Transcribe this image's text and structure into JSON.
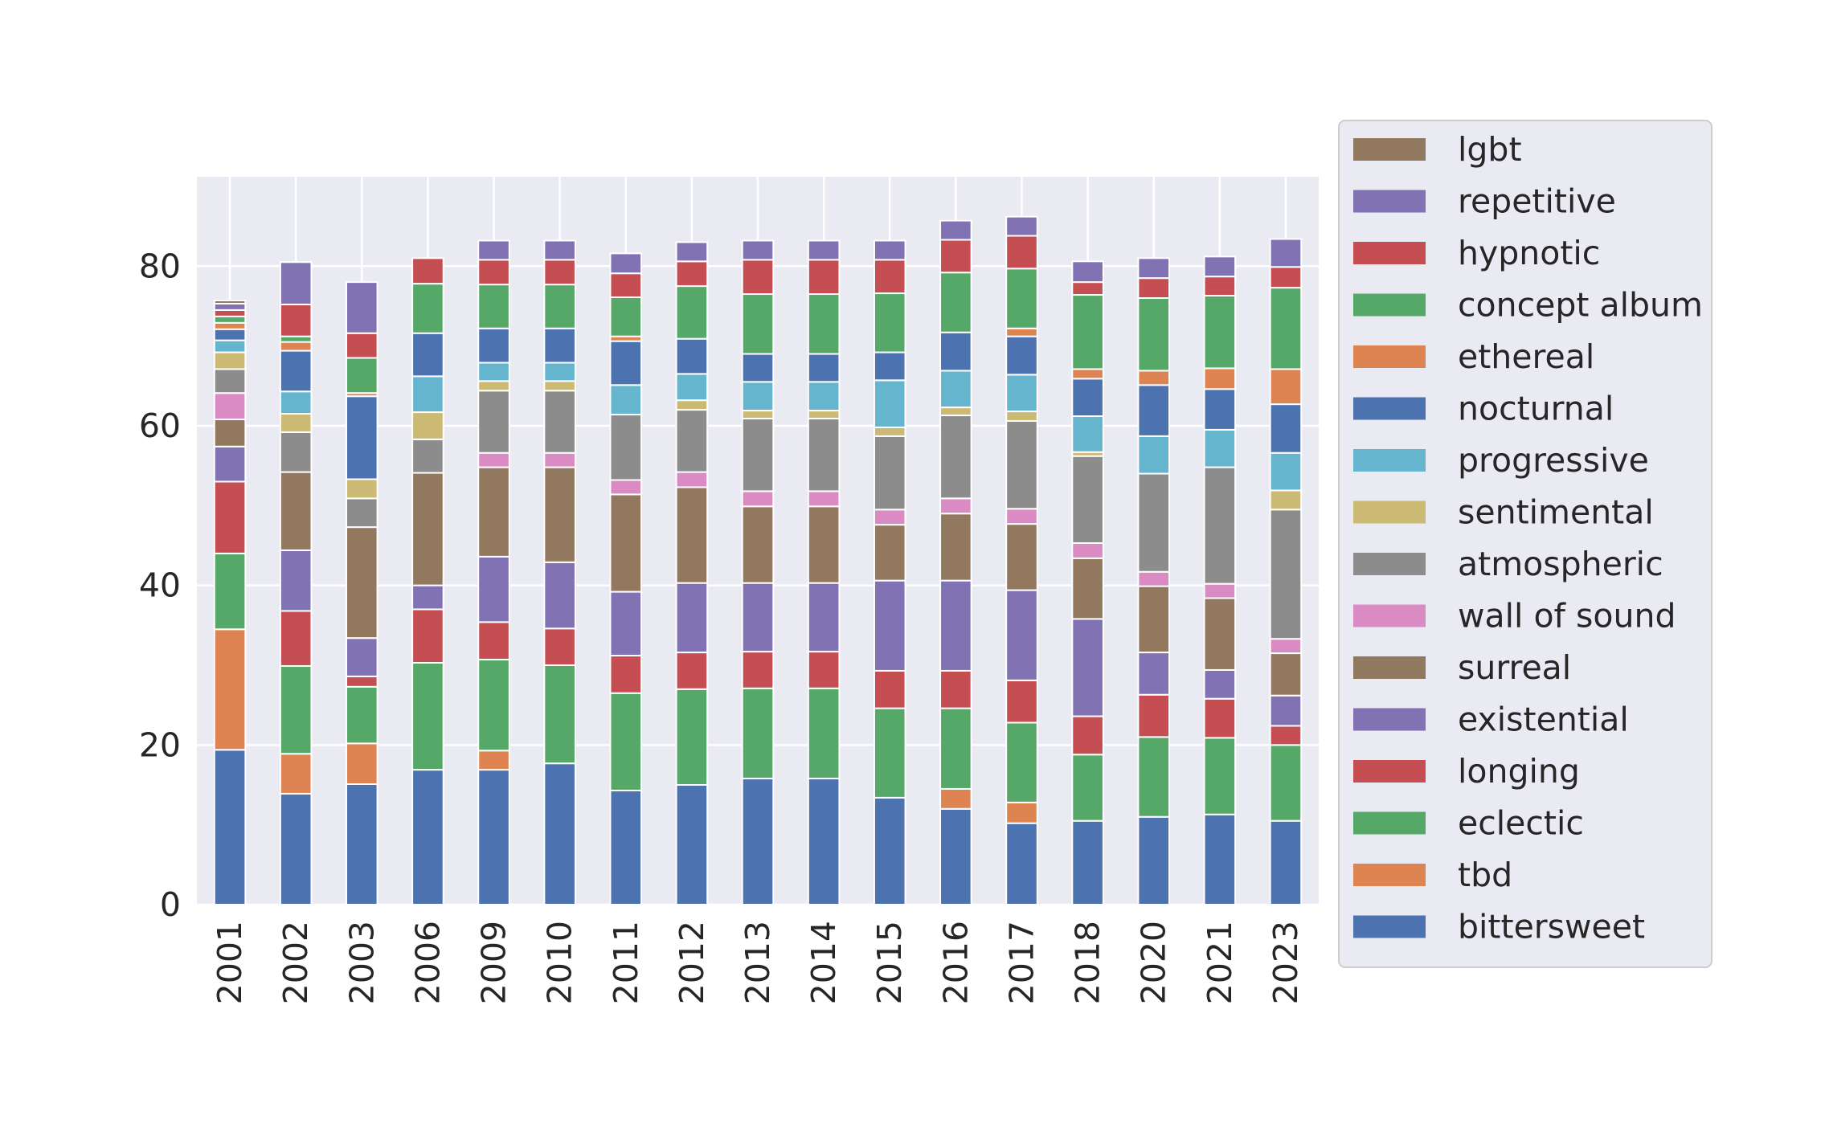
{
  "chart_data": {
    "type": "bar",
    "stacked": true,
    "title": "",
    "xlabel": "",
    "ylabel": "",
    "ylim": [
      0,
      91.2
    ],
    "yticks": [
      0,
      20,
      40,
      60,
      80
    ],
    "grid": true,
    "legend_position": "outside-right",
    "categories": [
      "2001",
      "2002",
      "2003",
      "2006",
      "2009",
      "2010",
      "2011",
      "2012",
      "2013",
      "2014",
      "2015",
      "2016",
      "2017",
      "2018",
      "2020",
      "2021",
      "2023"
    ],
    "series": [
      {
        "name": "bittersweet",
        "color": "#4c72b0",
        "values": [
          19.4,
          13.9,
          15.1,
          16.9,
          16.9,
          17.7,
          14.3,
          15.0,
          15.8,
          15.8,
          13.4,
          12.0,
          10.2,
          10.5,
          11.0,
          11.3,
          10.5
        ]
      },
      {
        "name": "tbd",
        "color": "#dd8452",
        "values": [
          15.1,
          5.0,
          5.1,
          0,
          2.4,
          0,
          0,
          0,
          0,
          0,
          0,
          2.5,
          2.6,
          0,
          0,
          0,
          0
        ]
      },
      {
        "name": "eclectic",
        "color": "#55a868",
        "values": [
          9.5,
          11.0,
          7.1,
          13.4,
          11.4,
          12.3,
          12.2,
          12.0,
          11.3,
          11.3,
          11.2,
          10.1,
          10.0,
          8.3,
          10.0,
          9.6,
          9.5
        ]
      },
      {
        "name": "longing",
        "color": "#c44e52",
        "values": [
          9.0,
          6.9,
          1.3,
          6.7,
          4.7,
          4.6,
          4.7,
          4.6,
          4.6,
          4.6,
          4.7,
          4.7,
          5.3,
          4.8,
          5.3,
          4.9,
          2.4
        ]
      },
      {
        "name": "existential",
        "color": "#8172b3",
        "values": [
          4.4,
          7.6,
          4.8,
          3.0,
          8.2,
          8.3,
          8.0,
          8.7,
          8.6,
          8.6,
          11.3,
          11.3,
          11.3,
          12.2,
          5.3,
          3.6,
          3.8
        ]
      },
      {
        "name": "surreal",
        "color": "#937860",
        "values": [
          3.4,
          9.8,
          13.9,
          14.1,
          11.2,
          11.9,
          12.2,
          12.0,
          9.6,
          9.6,
          7.0,
          8.4,
          8.3,
          7.6,
          8.3,
          9.0,
          5.3
        ]
      },
      {
        "name": "wall of sound",
        "color": "#da8bc3",
        "values": [
          3.3,
          0,
          0,
          0,
          1.8,
          1.8,
          1.8,
          1.9,
          1.9,
          1.9,
          1.9,
          1.9,
          1.9,
          1.9,
          1.8,
          1.8,
          1.8
        ]
      },
      {
        "name": "atmospheric",
        "color": "#8c8c8c",
        "values": [
          3.0,
          5.0,
          3.6,
          4.2,
          7.8,
          7.8,
          8.2,
          7.8,
          9.1,
          9.1,
          9.2,
          10.4,
          11.0,
          10.9,
          12.3,
          14.6,
          16.2
        ]
      },
      {
        "name": "sentimental",
        "color": "#ccb974",
        "values": [
          2.1,
          2.3,
          2.4,
          3.4,
          1.2,
          1.2,
          0,
          1.2,
          1.0,
          1.0,
          1.1,
          1.0,
          1.2,
          0.5,
          0,
          0,
          2.4
        ]
      },
      {
        "name": "progressive",
        "color": "#64b5cd",
        "values": [
          1.5,
          2.8,
          0,
          4.5,
          2.3,
          2.3,
          3.7,
          3.3,
          3.6,
          3.6,
          5.9,
          4.6,
          4.6,
          4.5,
          4.7,
          4.7,
          4.7
        ]
      },
      {
        "name": "nocturnal",
        "color": "#4c72b0",
        "values": [
          1.4,
          5.1,
          10.4,
          5.4,
          4.3,
          4.3,
          5.5,
          4.4,
          3.5,
          3.5,
          3.5,
          4.8,
          4.8,
          4.7,
          6.4,
          5.1,
          6.1
        ]
      },
      {
        "name": "ethereal",
        "color": "#dd8452",
        "values": [
          0.8,
          1.1,
          0.4,
          0,
          0,
          0,
          0.6,
          0,
          0,
          0,
          0,
          0,
          1.0,
          1.2,
          1.8,
          2.6,
          4.4
        ]
      },
      {
        "name": "concept album",
        "color": "#55a868",
        "values": [
          0.8,
          0.7,
          4.4,
          6.2,
          5.5,
          5.5,
          4.9,
          6.6,
          7.5,
          7.5,
          7.4,
          7.5,
          7.5,
          9.3,
          9.1,
          9.1,
          10.2
        ]
      },
      {
        "name": "hypnotic",
        "color": "#c44e52",
        "values": [
          0.8,
          4.0,
          3.1,
          3.2,
          3.1,
          3.1,
          3.0,
          3.1,
          4.3,
          4.3,
          4.2,
          4.1,
          4.1,
          1.6,
          2.5,
          2.4,
          2.6
        ]
      },
      {
        "name": "repetitive",
        "color": "#8172b3",
        "values": [
          0.8,
          5.3,
          6.4,
          0,
          2.4,
          2.4,
          2.5,
          2.4,
          2.4,
          2.4,
          2.4,
          2.4,
          2.4,
          2.6,
          2.5,
          2.5,
          3.5
        ]
      },
      {
        "name": "lgbt",
        "color": "#937860",
        "values": [
          0.4,
          0,
          0,
          0,
          0,
          0,
          0,
          0,
          0,
          0,
          0,
          0,
          0,
          0,
          0,
          0,
          0
        ]
      }
    ]
  }
}
